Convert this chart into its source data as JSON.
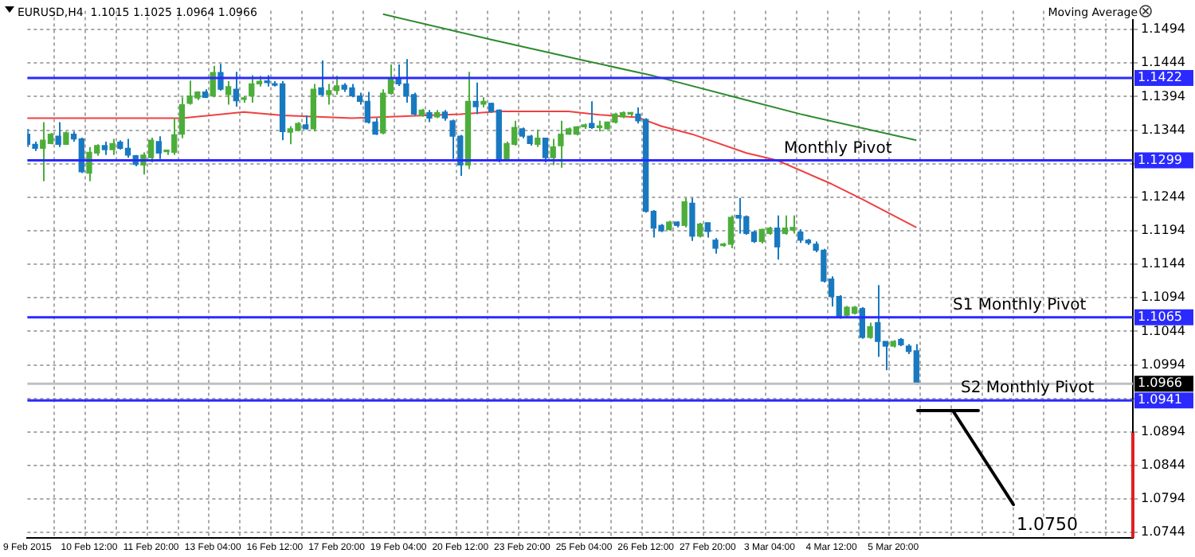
{
  "chart_data": {
    "type": "candlestick",
    "title": "EURUSD,H4  1.1015 1.1025 1.0964 1.0966",
    "categories": [
      "9 Feb 2015",
      null,
      null,
      null,
      null,
      null,
      null,
      null,
      "10 Feb 12:00",
      null,
      null,
      null,
      null,
      null,
      null,
      null,
      "11 Feb 20:00",
      null,
      null,
      null,
      null,
      null,
      null,
      null,
      "13 Feb 04:00",
      null,
      null,
      null,
      null,
      null,
      null,
      null,
      "16 Feb 12:00",
      null,
      null,
      null,
      null,
      null,
      null,
      null,
      "17 Feb 20:00",
      null,
      null,
      null,
      null,
      null,
      null,
      null,
      "19 Feb 04:00",
      null,
      null,
      null,
      null,
      null,
      null,
      null,
      "20 Feb 12:00",
      null,
      null,
      null,
      null,
      null,
      null,
      null,
      "23 Feb 20:00",
      null,
      null,
      null,
      null,
      null,
      null,
      null,
      "25 Feb 04:00",
      null,
      null,
      null,
      null,
      null,
      null,
      null,
      "26 Feb 12:00",
      null,
      null,
      null,
      null,
      null,
      null,
      null,
      "27 Feb 20:00",
      null,
      null,
      null,
      null,
      null,
      null,
      null,
      "3 Mar 04:00",
      null,
      null,
      null,
      null,
      null,
      null,
      null,
      "4 Mar 12:00",
      null,
      null,
      null,
      null,
      null,
      null,
      null,
      "5 Mar 20:00",
      null,
      null,
      null,
      null,
      null,
      null,
      null,
      null,
      null,
      null,
      null,
      null,
      null,
      null,
      null,
      null,
      null,
      null,
      null,
      null,
      null,
      null,
      null,
      null,
      null,
      null,
      null,
      null,
      null,
      null,
      null
    ],
    "ohlc": [
      [
        1.1338,
        1.1346,
        1.1319,
        1.1323
      ],
      [
        1.1323,
        1.1327,
        1.1313,
        1.1317
      ],
      [
        1.1317,
        1.1356,
        1.1268,
        1.1329
      ],
      [
        1.1324,
        1.134,
        1.1323,
        1.1338
      ],
      [
        1.1335,
        1.1356,
        1.1319,
        1.1323
      ],
      [
        1.1323,
        1.1342,
        1.1322,
        1.134
      ],
      [
        1.1338,
        1.1342,
        1.1327,
        1.1331
      ],
      [
        1.1331,
        1.1333,
        1.128,
        1.1282
      ],
      [
        1.128,
        1.1319,
        1.1268,
        1.1311
      ],
      [
        1.131,
        1.1323,
        1.1306,
        1.1321
      ],
      [
        1.1321,
        1.1327,
        1.1307,
        1.1315
      ],
      [
        1.1315,
        1.1331,
        1.1307,
        1.1324
      ],
      [
        1.1326,
        1.1329,
        1.1315,
        1.1317
      ],
      [
        1.1317,
        1.1331,
        1.1303,
        1.1307
      ],
      [
        1.1306,
        1.1307,
        1.129,
        1.1293
      ],
      [
        1.1292,
        1.1311,
        1.1278,
        1.1307
      ],
      [
        1.1303,
        1.1333,
        1.1296,
        1.1329
      ],
      [
        1.1327,
        1.1335,
        1.1301,
        1.131
      ],
      [
        1.1312,
        1.1315,
        1.1307,
        1.1313
      ],
      [
        1.1311,
        1.1362,
        1.1307,
        1.1337
      ],
      [
        1.1338,
        1.1393,
        1.1332,
        1.1382
      ],
      [
        1.1384,
        1.1418,
        1.1382,
        1.1395
      ],
      [
        1.1392,
        1.1402,
        1.1389,
        1.1401
      ],
      [
        1.1401,
        1.1405,
        1.1392,
        1.1393
      ],
      [
        1.1395,
        1.144,
        1.1393,
        1.143
      ],
      [
        1.143,
        1.1443,
        1.1403,
        1.1405
      ],
      [
        1.1397,
        1.1417,
        1.1382,
        1.1409
      ],
      [
        1.1405,
        1.1431,
        1.1379,
        1.1388
      ],
      [
        1.139,
        1.1395,
        1.1385,
        1.1392
      ],
      [
        1.1395,
        1.1426,
        1.1385,
        1.1413
      ],
      [
        1.1413,
        1.1425,
        1.1409,
        1.1417
      ],
      [
        1.1417,
        1.1426,
        1.1409,
        1.1415
      ],
      [
        1.1413,
        1.1417,
        1.1409,
        1.1411
      ],
      [
        1.1413,
        1.1417,
        1.1329,
        1.1342
      ],
      [
        1.1341,
        1.135,
        1.1323,
        1.1346
      ],
      [
        1.1344,
        1.1356,
        1.1342,
        1.1354
      ],
      [
        1.1352,
        1.1366,
        1.1345,
        1.1346
      ],
      [
        1.1346,
        1.1413,
        1.1342,
        1.1405
      ],
      [
        1.1407,
        1.1448,
        1.1395,
        1.1397
      ],
      [
        1.1397,
        1.1413,
        1.1382,
        1.1403
      ],
      [
        1.1403,
        1.1425,
        1.1397,
        1.141
      ],
      [
        1.1411,
        1.1414,
        1.1401,
        1.1405
      ],
      [
        1.1407,
        1.1413,
        1.1393,
        1.1395
      ],
      [
        1.1395,
        1.14,
        1.1382,
        1.1387
      ],
      [
        1.1387,
        1.1401,
        1.1354,
        1.1356
      ],
      [
        1.1356,
        1.1362,
        1.1337,
        1.1338
      ],
      [
        1.134,
        1.1405,
        1.1338,
        1.1399
      ],
      [
        1.1399,
        1.1442,
        1.1397,
        1.1421
      ],
      [
        1.1422,
        1.1442,
        1.141,
        1.1413
      ],
      [
        1.1413,
        1.145,
        1.1385,
        1.1395
      ],
      [
        1.1397,
        1.14,
        1.1366,
        1.1368
      ],
      [
        1.1366,
        1.1376,
        1.1364,
        1.1374
      ],
      [
        1.137,
        1.1374,
        1.1356,
        1.1362
      ],
      [
        1.1364,
        1.1374,
        1.1362,
        1.137
      ],
      [
        1.1371,
        1.1374,
        1.1358,
        1.1362
      ],
      [
        1.1358,
        1.136,
        1.1301,
        1.1335
      ],
      [
        1.1335,
        1.1337,
        1.1276,
        1.1292
      ],
      [
        1.1292,
        1.1431,
        1.1286,
        1.1387
      ],
      [
        1.1387,
        1.1415,
        1.1368,
        1.1379
      ],
      [
        1.1383,
        1.1393,
        1.1378,
        1.1387
      ],
      [
        1.1384,
        1.1385,
        1.137,
        1.1372
      ],
      [
        1.1374,
        1.1375,
        1.1296,
        1.1298
      ],
      [
        1.1299,
        1.1327,
        1.1298,
        1.1324
      ],
      [
        1.1323,
        1.1358,
        1.1321,
        1.1348
      ],
      [
        1.1346,
        1.1348,
        1.1332,
        1.1335
      ],
      [
        1.1335,
        1.1337,
        1.1321,
        1.1324
      ],
      [
        1.1323,
        1.1345,
        1.1319,
        1.1332
      ],
      [
        1.1332,
        1.1333,
        1.1296,
        1.1303
      ],
      [
        1.1303,
        1.1331,
        1.1292,
        1.1319
      ],
      [
        1.1321,
        1.1358,
        1.1288,
        1.1338
      ],
      [
        1.1338,
        1.1348,
        1.1337,
        1.1346
      ],
      [
        1.1338,
        1.135,
        1.1336,
        1.1349
      ],
      [
        1.1349,
        1.1354,
        1.1346,
        1.1352
      ],
      [
        1.1354,
        1.1387,
        1.1346,
        1.1348
      ],
      [
        1.1348,
        1.1358,
        1.1342,
        1.1349
      ],
      [
        1.1346,
        1.1357,
        1.1345,
        1.1356
      ],
      [
        1.1356,
        1.137,
        1.1354,
        1.1368
      ],
      [
        1.1364,
        1.1372,
        1.1362,
        1.137
      ],
      [
        1.1368,
        1.1371,
        1.1365,
        1.1369
      ],
      [
        1.1368,
        1.1378,
        1.1354,
        1.1358
      ],
      [
        1.136,
        1.1362,
        1.1221,
        1.1223
      ],
      [
        1.1223,
        1.1225,
        1.1184,
        1.1198
      ],
      [
        1.1202,
        1.1204,
        1.1192,
        1.1194
      ],
      [
        1.1196,
        1.1209,
        1.1194,
        1.1207
      ],
      [
        1.1207,
        1.1208,
        1.1199,
        1.1202
      ],
      [
        1.1202,
        1.1243,
        1.1199,
        1.1237
      ],
      [
        1.1235,
        1.1243,
        1.1179,
        1.1186
      ],
      [
        1.1186,
        1.1206,
        1.1184,
        1.1204
      ],
      [
        1.1206,
        1.1206,
        1.1184,
        1.1193
      ],
      [
        1.118,
        1.1183,
        1.116,
        1.1168
      ],
      [
        1.1172,
        1.1176,
        1.117,
        1.1173
      ],
      [
        1.1174,
        1.1217,
        1.1168,
        1.1214
      ],
      [
        1.1217,
        1.1243,
        1.119,
        1.1213
      ],
      [
        1.1215,
        1.1217,
        1.1188,
        1.119
      ],
      [
        1.1192,
        1.1194,
        1.1176,
        1.1178
      ],
      [
        1.1178,
        1.1197,
        1.1175,
        1.1196
      ],
      [
        1.119,
        1.12,
        1.1188,
        1.1198
      ],
      [
        1.1198,
        1.1217,
        1.1151,
        1.117
      ],
      [
        1.119,
        1.1217,
        1.1188,
        1.1198
      ],
      [
        1.1195,
        1.1217,
        1.119,
        1.1199
      ],
      [
        1.1192,
        1.1196,
        1.1176,
        1.118
      ],
      [
        1.118,
        1.1182,
        1.1173,
        1.1176
      ],
      [
        1.1174,
        1.1178,
        1.1162,
        1.1165
      ],
      [
        1.1165,
        1.1167,
        1.1117,
        1.1119
      ],
      [
        1.1122,
        1.1126,
        1.1081,
        1.1096
      ],
      [
        1.1096,
        1.1098,
        1.1063,
        1.1065
      ],
      [
        1.1068,
        1.1082,
        1.1066,
        1.108
      ],
      [
        1.1071,
        1.1082,
        1.1069,
        1.108
      ],
      [
        1.1078,
        1.108,
        1.1033,
        1.1035
      ],
      [
        1.1035,
        1.1057,
        1.1033,
        1.1051
      ],
      [
        1.1057,
        1.1113,
        1.1006,
        1.1029
      ],
      [
        1.1029,
        1.1029,
        1.0986,
        1.1022
      ],
      [
        1.1022,
        1.1031,
        1.102,
        1.1029
      ],
      [
        1.1032,
        1.1034,
        1.1022,
        1.1024
      ],
      [
        1.1022,
        1.1025,
        1.101,
        1.1014
      ],
      [
        1.1015,
        1.1025,
        1.0964,
        1.0966
      ],
      null,
      null,
      null,
      null,
      null,
      null,
      null,
      null,
      null,
      null,
      null,
      null,
      null,
      null,
      null,
      null,
      null,
      null,
      null,
      null,
      null,
      null,
      null,
      null,
      null,
      null,
      null,
      null
    ],
    "series": [
      {
        "type": "line",
        "color": "#f04040",
        "values": [
          1.1362,
          null,
          null,
          null,
          null,
          null,
          null,
          null,
          null,
          null,
          null,
          null,
          null,
          null,
          null,
          null,
          null,
          null,
          null,
          null,
          1.1362,
          null,
          null,
          null,
          null,
          null,
          null,
          null,
          1.1371,
          null,
          null,
          null,
          null,
          1.1366,
          null,
          null,
          null,
          null,
          null,
          null,
          null,
          null,
          1.1362,
          null,
          null,
          null,
          null,
          null,
          null,
          null,
          null,
          null,
          null,
          null,
          null,
          null,
          1.1368,
          null,
          null,
          null,
          null,
          1.1372,
          null,
          null,
          null,
          null,
          null,
          null,
          null,
          null,
          1.1372,
          null,
          null,
          null,
          1.1367,
          null,
          null,
          null,
          null,
          1.1363,
          null,
          null,
          1.135,
          null,
          null,
          null,
          1.1338,
          null,
          null,
          null,
          null,
          null,
          null,
          1.131,
          null,
          null,
          null,
          1.1299,
          null,
          null,
          null,
          null,
          null,
          null,
          1.1264,
          null,
          null,
          null,
          1.1241,
          null,
          null,
          null,
          null,
          null,
          null,
          1.1199,
          null,
          null,
          null,
          null,
          null,
          null,
          null,
          null,
          null,
          null,
          null,
          null,
          null,
          null,
          null,
          null,
          null,
          null,
          null,
          null,
          null,
          null,
          null,
          null,
          null,
          null,
          null,
          null
        ]
      },
      {
        "type": "line",
        "color": "#2e8b2e",
        "values": [
          null,
          null,
          null,
          null,
          null,
          null,
          null,
          null,
          null,
          null,
          null,
          null,
          null,
          null,
          null,
          null,
          null,
          null,
          null,
          null,
          null,
          null,
          null,
          null,
          null,
          null,
          null,
          null,
          null,
          null,
          null,
          null,
          null,
          null,
          null,
          null,
          null,
          null,
          null,
          null,
          null,
          null,
          null,
          null,
          null,
          null,
          1.1517,
          null,
          null,
          null,
          null,
          null,
          null,
          null,
          null,
          null,
          null,
          null,
          null,
          null,
          1.1479,
          null,
          null,
          null,
          null,
          null,
          null,
          null,
          null,
          null,
          null,
          null,
          1.1448,
          null,
          null,
          null,
          null,
          null,
          null,
          null,
          null,
          1.1425,
          null,
          null,
          null,
          null,
          null,
          null,
          null,
          null,
          null,
          null,
          null,
          1.1389,
          null,
          null,
          null,
          null,
          null,
          null,
          1.1368,
          null,
          null,
          null,
          null,
          null,
          null,
          null,
          null,
          null,
          null,
          null,
          null,
          null,
          null,
          1.1329,
          null,
          null,
          null,
          null,
          null,
          null,
          null,
          null,
          null,
          null,
          null,
          null,
          null,
          null,
          null,
          null,
          null,
          null,
          null,
          null,
          null,
          null,
          null,
          null,
          null,
          null,
          null,
          null
        ]
      }
    ],
    "ylim": [
      1.0736,
      1.1522
    ],
    "yticks": [
      1.1494,
      1.1444,
      1.1394,
      1.1344,
      {
        "value": 1.1294,
        "label": null
      },
      1.1244,
      1.1194,
      1.1144,
      1.1094,
      1.1044,
      1.0994,
      {
        "value": 1.0944,
        "label": null
      },
      1.0894,
      1.0844,
      1.0794,
      1.0744
    ],
    "grid": true,
    "ref_lines": [
      {
        "axis": "y",
        "value": 1.1422,
        "label": "1.1422",
        "color": "#2a2aff"
      },
      {
        "axis": "y",
        "value": 1.1299,
        "label": "1.1299",
        "color": "#2a2aff"
      },
      {
        "axis": "y",
        "value": 1.1065,
        "label": "1.1065",
        "color": "#2a2aff"
      },
      {
        "axis": "y",
        "value": 1.0966,
        "label": "1.0966",
        "color": "#c0c0c0"
      },
      {
        "axis": "y",
        "value": 1.0941,
        "label": "1.0941",
        "color": "#2a2aff"
      }
    ],
    "annotations": [
      "Moving Average",
      {
        "text": "Monthly Pivot",
        "y": 1.1299
      },
      {
        "text": "S1 Monthly Pivot",
        "y": 1.1065
      },
      {
        "text": "S2 Monthly Pivot",
        "y": 1.0941
      },
      "1.0750"
    ]
  }
}
